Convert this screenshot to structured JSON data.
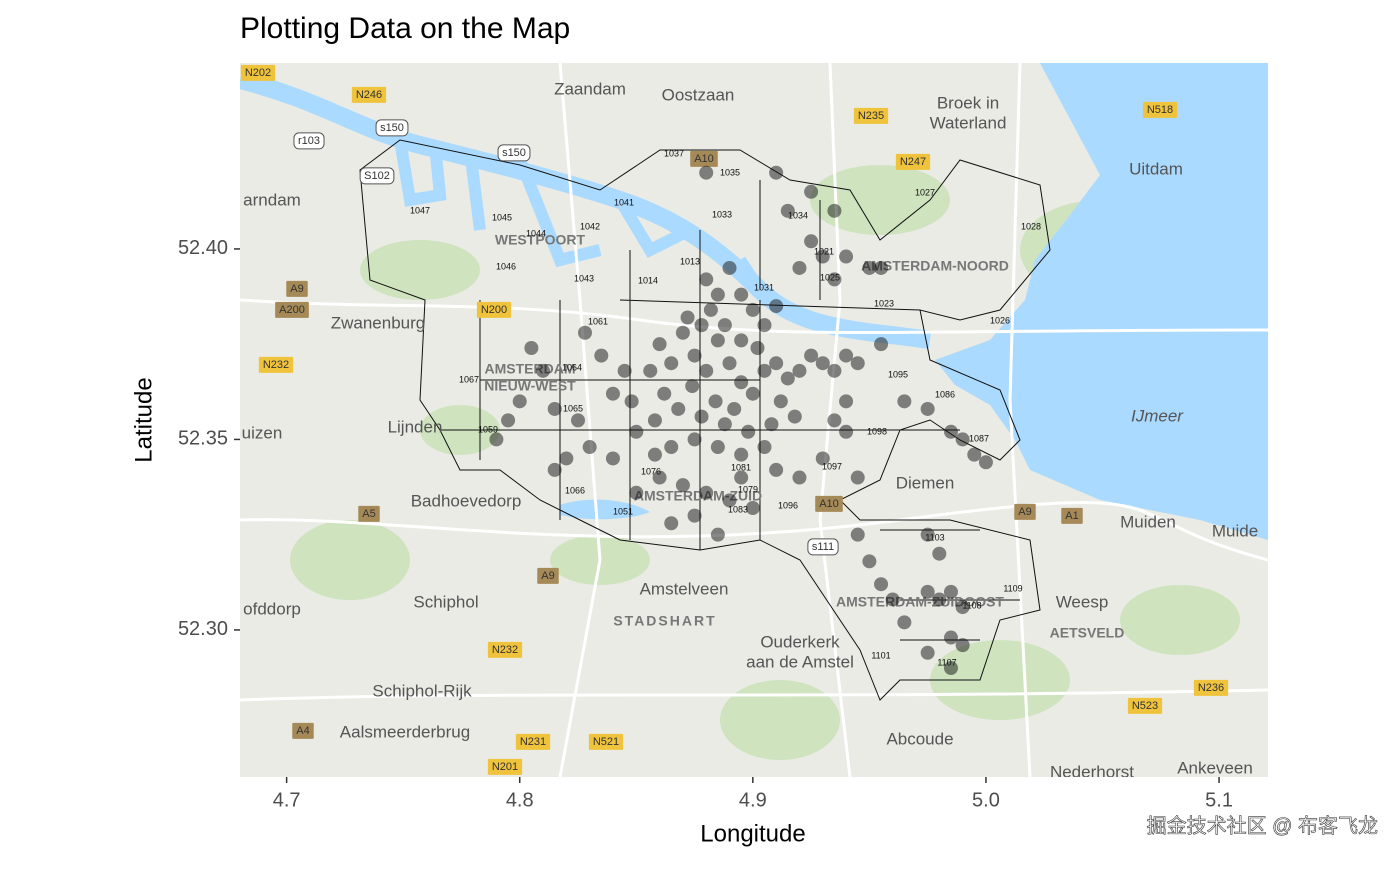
{
  "chart_data": {
    "type": "scatter",
    "title": "Plotting Data on the Map",
    "x_label": "Longitude",
    "y_label": "Latitude",
    "xlim": [
      4.68,
      5.121
    ],
    "ylim": [
      52.2614,
      52.4488
    ],
    "xticks": [
      4.7,
      4.8,
      4.9,
      {
        "value": 5,
        "label": "5.0"
      },
      5.1
    ],
    "yticks": [
      {
        "value": 52.3,
        "label": "52.30"
      },
      {
        "value": 52.35,
        "label": "52.35"
      },
      {
        "value": 52.4,
        "label": "52.40"
      }
    ],
    "color": "#111111",
    "opacity": 0.5,
    "x": [
      4.86,
      4.865,
      4.87,
      4.875,
      4.88,
      4.885,
      4.89,
      4.895,
      4.9,
      4.905,
      4.862,
      4.868,
      4.874,
      4.878,
      4.884,
      4.888,
      4.892,
      4.898,
      4.858,
      4.856,
      4.872,
      4.878,
      4.882,
      4.888,
      4.895,
      4.902,
      4.91,
      4.915,
      4.92,
      4.925,
      4.93,
      4.935,
      4.94,
      4.945,
      4.912,
      4.918,
      4.908,
      4.905,
      4.895,
      4.885,
      4.875,
      4.865,
      4.858,
      4.85,
      4.848,
      4.845,
      4.84,
      4.88,
      4.89,
      4.885,
      4.895,
      4.9,
      4.905,
      4.91,
      4.92,
      4.925,
      4.93,
      4.935,
      4.94,
      4.95,
      4.955,
      4.935,
      4.91,
      4.915,
      4.88,
      4.925,
      4.8,
      4.795,
      4.79,
      4.81,
      4.815,
      4.825,
      4.83,
      4.82,
      4.835,
      4.828,
      4.805,
      4.815,
      4.86,
      4.87,
      4.88,
      4.89,
      4.9,
      4.875,
      4.865,
      4.885,
      4.895,
      4.91,
      4.92,
      4.93,
      4.94,
      4.945,
      4.85,
      4.84,
      4.965,
      4.975,
      4.985,
      4.99,
      4.995,
      5.0,
      4.955,
      4.94,
      4.935,
      4.945,
      4.95,
      4.955,
      4.96,
      4.975,
      4.98,
      4.985,
      4.99,
      4.985,
      4.975,
      4.965,
      4.98,
      4.975,
      4.99,
      4.985
    ],
    "y": [
      52.375,
      52.37,
      52.378,
      52.372,
      52.368,
      52.376,
      52.37,
      52.365,
      52.362,
      52.368,
      52.362,
      52.358,
      52.364,
      52.356,
      52.36,
      52.354,
      52.358,
      52.352,
      52.355,
      52.368,
      52.382,
      52.38,
      52.384,
      52.38,
      52.376,
      52.374,
      52.37,
      52.366,
      52.368,
      52.372,
      52.37,
      52.368,
      52.372,
      52.37,
      52.36,
      52.356,
      52.354,
      52.348,
      52.346,
      52.348,
      52.35,
      52.348,
      52.346,
      52.352,
      52.36,
      52.368,
      52.362,
      52.392,
      52.395,
      52.388,
      52.388,
      52.384,
      52.38,
      52.385,
      52.395,
      52.402,
      52.398,
      52.392,
      52.398,
      52.395,
      52.395,
      52.41,
      52.42,
      52.41,
      52.42,
      52.415,
      52.36,
      52.355,
      52.35,
      52.368,
      52.358,
      52.355,
      52.348,
      52.345,
      52.372,
      52.378,
      52.374,
      52.342,
      52.34,
      52.338,
      52.336,
      52.334,
      52.332,
      52.33,
      52.328,
      52.325,
      52.34,
      52.342,
      52.34,
      52.345,
      52.352,
      52.34,
      52.336,
      52.345,
      52.36,
      52.358,
      52.352,
      52.35,
      52.346,
      52.344,
      52.375,
      52.36,
      52.355,
      52.325,
      52.318,
      52.312,
      52.308,
      52.31,
      52.308,
      52.31,
      52.306,
      52.298,
      52.294,
      52.302,
      52.32,
      52.325,
      52.296,
      52.29
    ]
  },
  "map_labels": [
    "Zaandam",
    "Oostzaan",
    "Broek in",
    "Waterland",
    "Uitdam",
    "arndam",
    "Zwanenburg",
    "Lijnden",
    "uizen",
    "Badhoevedorp",
    "Amstelveen",
    "Schiphol",
    "ofddorp",
    "Ouderkerk",
    "aan de Amstel",
    "Schiphol-Rijk",
    "Aalsmeerderbrug",
    "Abcoude",
    "Diemen",
    "Muiden",
    "Muide",
    "Weesp",
    "Nederhorst",
    "Ankeveen",
    "IJmeer",
    "WESTPOORT",
    "AMSTERDAM-NOORD",
    "AMSTERDAM",
    "NIEUW-WEST",
    "AMSTERDAM-ZUID",
    "AMSTERDAM-ZUIDOOST",
    "STADSHART",
    "AETSVELD"
  ],
  "road_labels": [
    "N202",
    "N246",
    "r103",
    "s150",
    "s150",
    "S102",
    "N235",
    "N247",
    "N518",
    "A9",
    "A200",
    "N200",
    "N232",
    "A5",
    "A9",
    "N232",
    "N231",
    "N521",
    "N201",
    "A4",
    "A10",
    "A10",
    "A9",
    "A1",
    "s111",
    "N236",
    "N523"
  ],
  "postcodes": [
    "1047",
    "1045",
    "1044",
    "1046",
    "1043",
    "1042",
    "1041",
    "1013",
    "1014",
    "1033",
    "1037",
    "1035",
    "1034",
    "1027",
    "1028",
    "1026",
    "1025",
    "1023",
    "1031",
    "1021",
    "1095",
    "1098",
    "1097",
    "1086",
    "1087",
    "1067",
    "1061",
    "1064",
    "1065",
    "1059",
    "1066",
    "1081",
    "1083",
    "1096",
    "1103",
    "1109",
    "1101",
    "1107",
    "1108",
    "1076",
    "1079",
    "1051"
  ],
  "watermark": "掘金技术社区 @ 布客飞龙"
}
